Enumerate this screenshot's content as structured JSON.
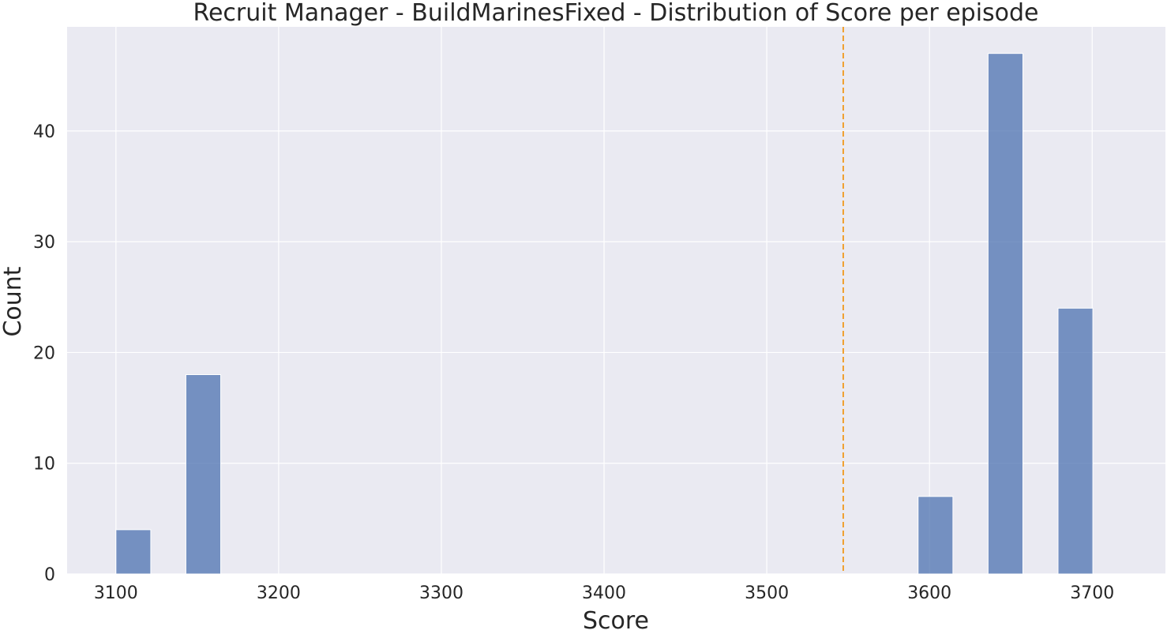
{
  "chart_data": {
    "type": "bar",
    "title": "Recruit Manager - BuildMarinesFixed - Distribution of Score per episode",
    "xlabel": "Score",
    "ylabel": "Count",
    "xlim": [
      3070,
      3745
    ],
    "ylim": [
      0,
      49.4
    ],
    "x_ticks": [
      3100,
      3200,
      3300,
      3400,
      3500,
      3600,
      3700
    ],
    "y_ticks": [
      0,
      10,
      20,
      30,
      40
    ],
    "bin_width": 21.4,
    "bins": [
      {
        "start": 3100,
        "count": 4
      },
      {
        "start": 3143,
        "count": 18
      },
      {
        "start": 3593,
        "count": 7
      },
      {
        "start": 3636,
        "count": 47
      },
      {
        "start": 3679,
        "count": 24
      }
    ],
    "reference_line": {
      "x": 3547,
      "style": "dashed"
    },
    "grid": true,
    "colors": {
      "bar": "#4c72b0",
      "reference_line": "#f0a030",
      "plot_background": "#eaeaf2",
      "grid": "#ffffff"
    }
  }
}
